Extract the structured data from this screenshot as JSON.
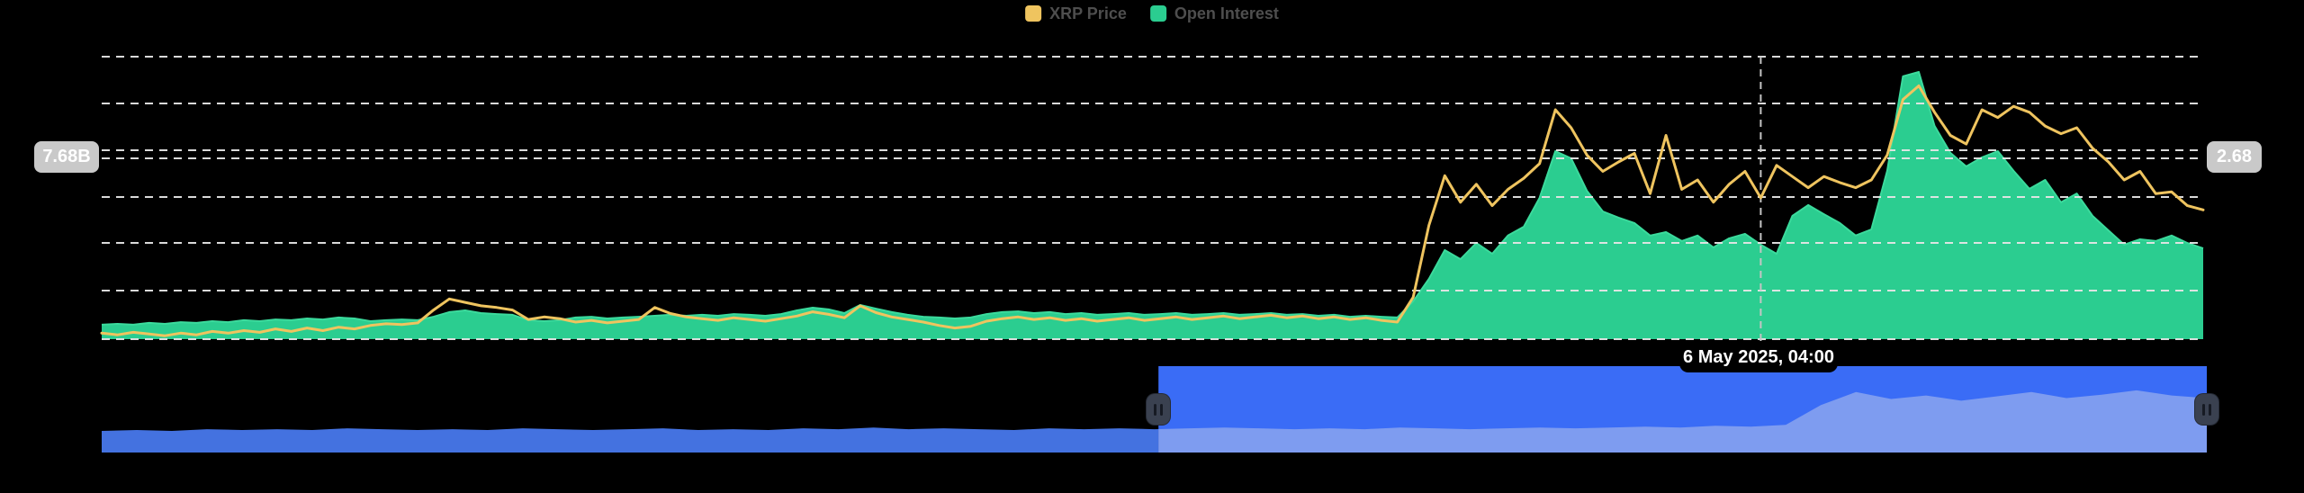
{
  "legend": {
    "items": [
      {
        "name": "xrp-price",
        "label": "XRP Price",
        "color": "#EFC45F"
      },
      {
        "name": "open-interest",
        "label": "Open Interest",
        "color": "#2BCD90"
      }
    ]
  },
  "left_axis_badge": "7.68B",
  "right_axis_badge": "2.68",
  "tooltip": {
    "text": "6 May 2025, 04:00"
  },
  "chart_data": {
    "type": "line+area",
    "title": "",
    "x_axis": {
      "hover_label": "6 May 2025, 04:00",
      "hover_index": 105
    },
    "left_axis": {
      "visible_label": "7.68B",
      "unit": "B",
      "range": [
        0,
        11.48
      ]
    },
    "right_axis": {
      "visible_label": "2.68",
      "range": [
        0.57,
        3.87
      ]
    },
    "grid": {
      "style": "dashed-horizontal",
      "colors": "#e6e6e6"
    },
    "legend_position": "top-center",
    "series": [
      {
        "name": "XRP Price",
        "type": "line",
        "axis": "right",
        "color": "#EFC45F",
        "values": [
          0.64,
          0.62,
          0.65,
          0.63,
          0.61,
          0.64,
          0.62,
          0.66,
          0.64,
          0.67,
          0.65,
          0.69,
          0.66,
          0.7,
          0.67,
          0.71,
          0.69,
          0.73,
          0.75,
          0.74,
          0.76,
          0.91,
          1.04,
          1.0,
          0.96,
          0.94,
          0.91,
          0.8,
          0.83,
          0.81,
          0.77,
          0.79,
          0.76,
          0.78,
          0.8,
          0.94,
          0.87,
          0.83,
          0.81,
          0.79,
          0.82,
          0.8,
          0.78,
          0.81,
          0.84,
          0.89,
          0.86,
          0.82,
          0.96,
          0.88,
          0.83,
          0.8,
          0.77,
          0.73,
          0.7,
          0.72,
          0.78,
          0.81,
          0.83,
          0.8,
          0.82,
          0.79,
          0.81,
          0.78,
          0.8,
          0.82,
          0.79,
          0.81,
          0.83,
          0.8,
          0.82,
          0.84,
          0.81,
          0.83,
          0.85,
          0.82,
          0.84,
          0.81,
          0.83,
          0.8,
          0.82,
          0.79,
          0.77,
          1.06,
          1.9,
          2.48,
          2.17,
          2.38,
          2.13,
          2.32,
          2.45,
          2.62,
          3.25,
          3.04,
          2.72,
          2.53,
          2.64,
          2.74,
          2.27,
          2.95,
          2.32,
          2.43,
          2.17,
          2.38,
          2.53,
          2.22,
          2.6,
          2.47,
          2.34,
          2.47,
          2.4,
          2.34,
          2.43,
          2.72,
          3.37,
          3.53,
          3.22,
          2.95,
          2.85,
          3.25,
          3.16,
          3.29,
          3.22,
          3.06,
          2.97,
          3.04,
          2.8,
          2.64,
          2.43,
          2.53,
          2.27,
          2.29,
          2.13,
          2.08
        ]
      },
      {
        "name": "Open Interest",
        "type": "area",
        "axis": "left",
        "color": "#2BCD90",
        "edge_color": "#3bda9c",
        "values": [
          0.59,
          0.62,
          0.59,
          0.66,
          0.62,
          0.69,
          0.66,
          0.73,
          0.69,
          0.77,
          0.73,
          0.8,
          0.77,
          0.84,
          0.8,
          0.88,
          0.84,
          0.73,
          0.77,
          0.8,
          0.77,
          0.91,
          1.1,
          1.17,
          1.06,
          1.02,
          0.99,
          0.77,
          0.73,
          0.77,
          0.88,
          0.91,
          0.84,
          0.88,
          0.91,
          0.95,
          0.99,
          0.95,
          0.99,
          0.95,
          1.02,
          0.99,
          0.95,
          1.02,
          1.17,
          1.28,
          1.21,
          1.06,
          1.39,
          1.24,
          1.1,
          0.99,
          0.91,
          0.88,
          0.84,
          0.88,
          1.02,
          1.1,
          1.13,
          1.06,
          1.1,
          1.02,
          1.06,
          0.99,
          1.02,
          1.06,
          0.99,
          1.02,
          1.06,
          0.99,
          1.02,
          1.06,
          0.99,
          1.02,
          1.06,
          0.99,
          1.02,
          0.95,
          0.99,
          0.91,
          0.95,
          0.91,
          0.88,
          1.54,
          2.45,
          3.62,
          3.25,
          3.91,
          3.47,
          4.21,
          4.57,
          5.74,
          7.64,
          7.35,
          6.03,
          5.19,
          4.94,
          4.72,
          4.21,
          4.35,
          3.99,
          4.21,
          3.73,
          4.1,
          4.28,
          3.84,
          3.47,
          5.01,
          5.45,
          5.08,
          4.72,
          4.21,
          4.46,
          6.84,
          10.68,
          10.86,
          8.67,
          7.57,
          7.02,
          7.39,
          7.64,
          6.84,
          6.11,
          6.47,
          5.56,
          5.92,
          5.01,
          4.42,
          3.84,
          4.06,
          3.99,
          4.21,
          3.91,
          3.69
        ]
      }
    ],
    "navigator": {
      "selected_from_frac": 0.502,
      "selected_to_frac": 1.0,
      "colors": {
        "unselected_area": "#4472E0",
        "selected_mask": "#3A6CF6",
        "selected_area": "#7E9CF0",
        "handle": "#3a4150",
        "handle_grip": "#161a23"
      },
      "profile": [
        0.25,
        0.26,
        0.25,
        0.27,
        0.26,
        0.27,
        0.26,
        0.28,
        0.27,
        0.26,
        0.27,
        0.26,
        0.28,
        0.27,
        0.26,
        0.27,
        0.28,
        0.26,
        0.27,
        0.26,
        0.28,
        0.27,
        0.29,
        0.27,
        0.28,
        0.27,
        0.26,
        0.28,
        0.27,
        0.28,
        0.27,
        0.28,
        0.29,
        0.28,
        0.27,
        0.28,
        0.27,
        0.29,
        0.28,
        0.27,
        0.28,
        0.29,
        0.28,
        0.29,
        0.3,
        0.29,
        0.31,
        0.3,
        0.32,
        0.55,
        0.7,
        0.62,
        0.66,
        0.6,
        0.65,
        0.7,
        0.63,
        0.67,
        0.72,
        0.66,
        0.63
      ]
    }
  }
}
